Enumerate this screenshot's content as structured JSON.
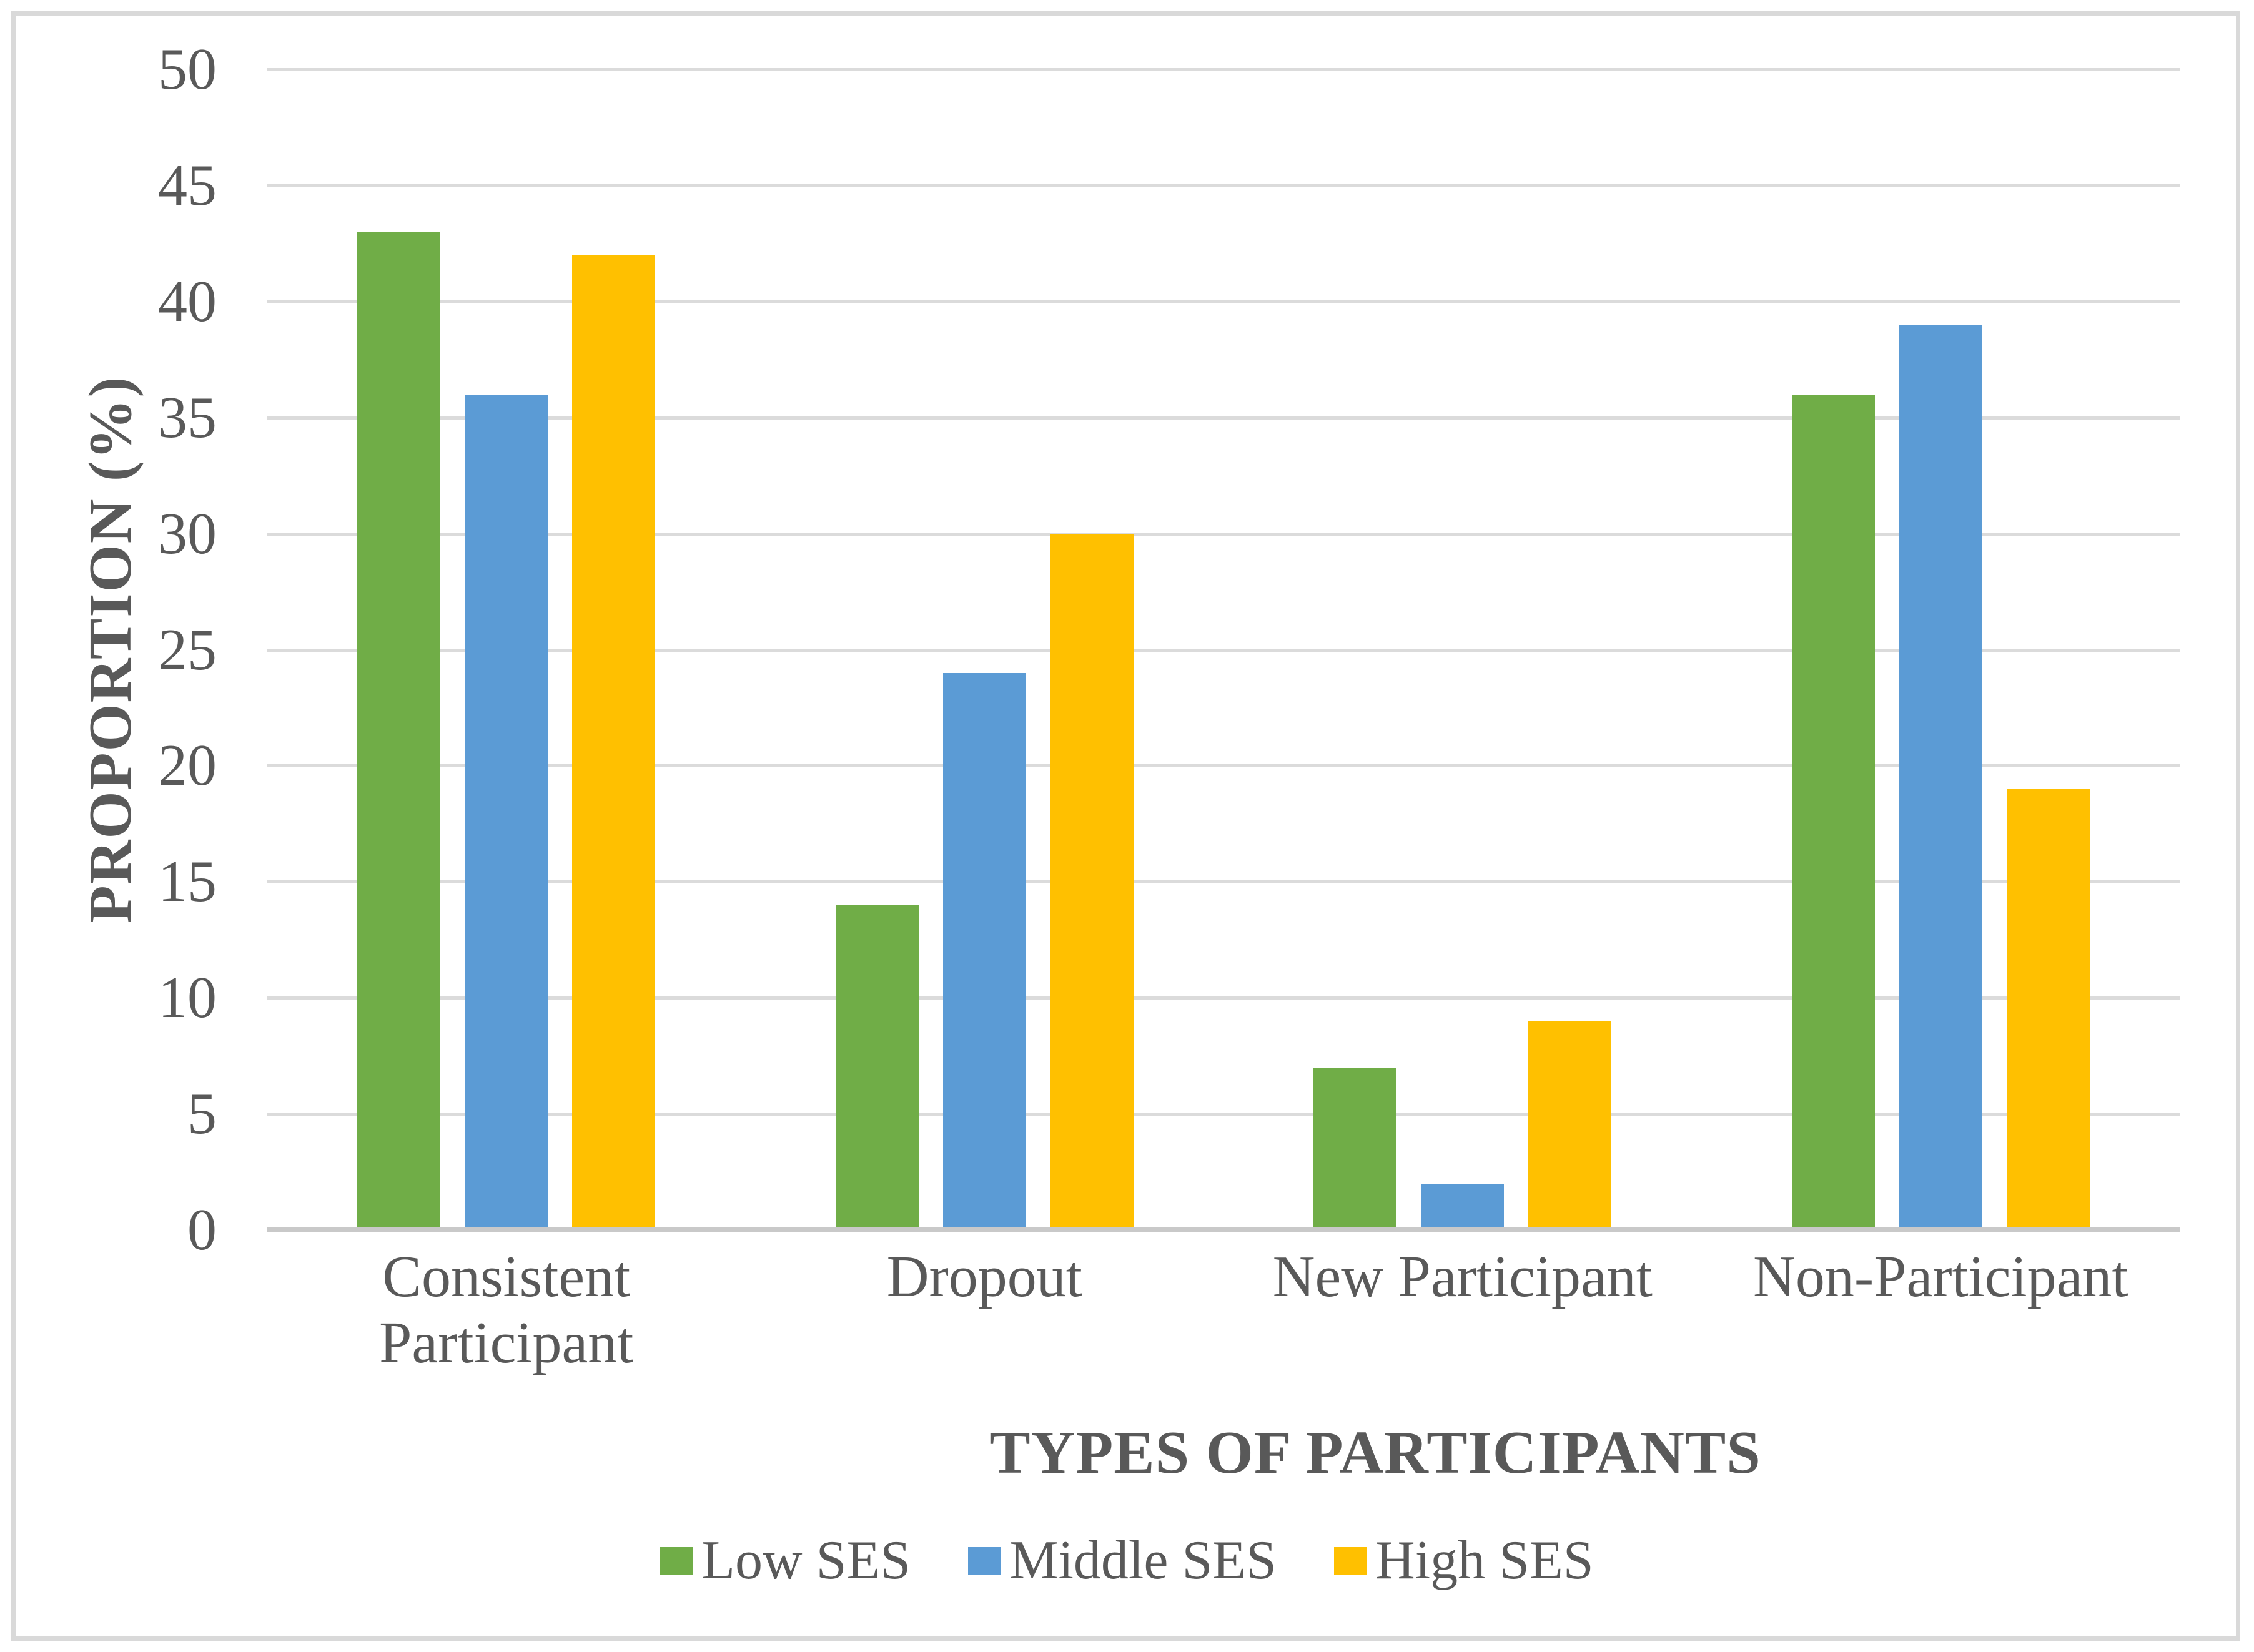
{
  "chart_data": {
    "type": "bar",
    "title": "",
    "categories": [
      "Consistent Participant",
      "Dropout",
      "New Participant",
      "Non-Participant"
    ],
    "series": [
      {
        "name": "Low SES",
        "color": "#70AD47",
        "values": [
          43,
          14,
          7,
          36
        ]
      },
      {
        "name": "Middle SES",
        "color": "#5B9BD5",
        "values": [
          36,
          24,
          2,
          39
        ]
      },
      {
        "name": "High SES",
        "color": "#FFC000",
        "values": [
          42,
          30,
          9,
          19
        ]
      }
    ],
    "xlabel": "TYPES OF PARTICIPANTS",
    "ylabel": "PROPORTION (%)",
    "ylim": [
      0,
      50
    ],
    "yticks": [
      0,
      5,
      10,
      15,
      20,
      25,
      30,
      35,
      40,
      45,
      50
    ],
    "grid": "horizontal",
    "legend_position": "bottom"
  },
  "style": {
    "text_color": "#595959",
    "grid_color": "#DBDBDB",
    "axis_line_color": "#C9C9C9",
    "frame_border_color": "#D9D9D9",
    "background": "#FFFFFF"
  }
}
